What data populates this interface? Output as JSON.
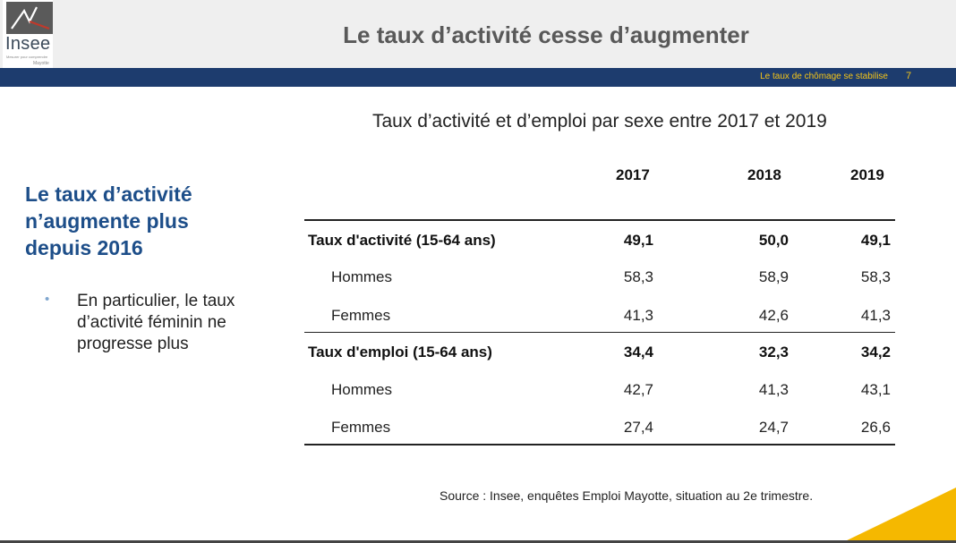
{
  "header": {
    "logo": {
      "name": "Insee",
      "tagline": "Mesurer pour comprendre",
      "region": "Mayotte"
    },
    "title": "Le taux d’activité cesse d’augmenter",
    "band_text": "Le taux de chômage se stabilise",
    "page_number": "7",
    "colors": {
      "band": "#1d3c6e",
      "accent": "#f5c518",
      "title": "#595959"
    }
  },
  "left_panel": {
    "title": "Le taux d’activité n’augmente plus depuis 2016",
    "bullet_icon": "bullet-dot",
    "bullets": [
      "En particulier, le taux d’activité féminin ne progresse plus"
    ]
  },
  "table": {
    "title": "Taux d’activité et d’emploi par sexe entre 2017 et 2019",
    "columns": [
      "2017",
      "2018",
      "2019"
    ],
    "rows": [
      {
        "label": "Taux d'activité (15-64 ans)",
        "values": [
          "49,1",
          "50,0",
          "49,1"
        ],
        "bold": true
      },
      {
        "label": "Hommes",
        "values": [
          "58,3",
          "58,9",
          "58,3"
        ],
        "bold": false
      },
      {
        "label": "Femmes",
        "values": [
          "41,3",
          "42,6",
          "41,3"
        ],
        "bold": false
      },
      {
        "label": "Taux d'emploi (15-64 ans)",
        "values": [
          "34,4",
          "32,3",
          "34,2"
        ],
        "bold": true
      },
      {
        "label": "Hommes",
        "values": [
          "42,7",
          "41,3",
          "43,1"
        ],
        "bold": false
      },
      {
        "label": "Femmes",
        "values": [
          "27,4",
          "24,7",
          "26,6"
        ],
        "bold": false
      }
    ]
  },
  "source": "Source : Insee, enquêtes Emploi Mayotte, situation au 2e trimestre."
}
